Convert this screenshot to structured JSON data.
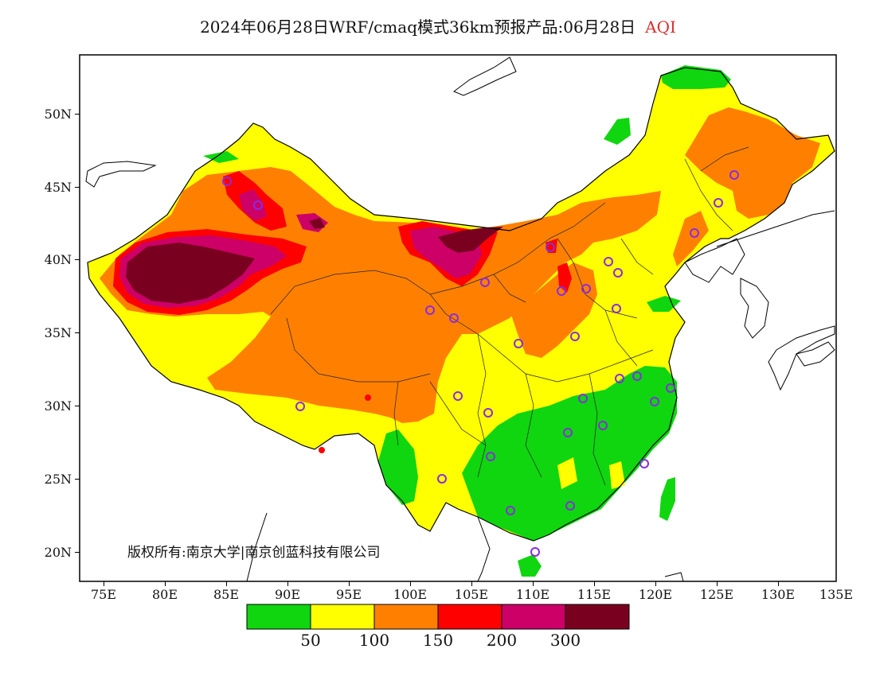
{
  "title": {
    "text": "2024年06月28日WRF/cmaq模式36km预报产品:06月28日",
    "variable": "AQI",
    "variable_color": "#d9302f"
  },
  "copyright": {
    "text": "版权所有:南京大学|南京创蓝科技有限公司"
  },
  "axes": {
    "lon_ticks": [
      "75E",
      "80E",
      "85E",
      "90E",
      "95E",
      "100E",
      "105E",
      "110E",
      "115E",
      "120E",
      "125E",
      "130E",
      "135E"
    ],
    "lat_ticks": [
      "20N",
      "25N",
      "30N",
      "35N",
      "40N",
      "45N",
      "50N"
    ]
  },
  "legend": {
    "colors": [
      "#0fd60f",
      "#ffff00",
      "#ff8000",
      "#ff0000",
      "#cc0066",
      "#7a0020"
    ],
    "thresholds": [
      "50",
      "100",
      "150",
      "200",
      "300"
    ]
  },
  "colors": {
    "good": "#0fd60f",
    "moderate": "#ffff00",
    "sensitive": "#ff8000",
    "unhealthy": "#ff0000",
    "very_unhealthy": "#cc0066",
    "hazardous": "#7a0020",
    "station_marker": "#8a2be2"
  }
}
